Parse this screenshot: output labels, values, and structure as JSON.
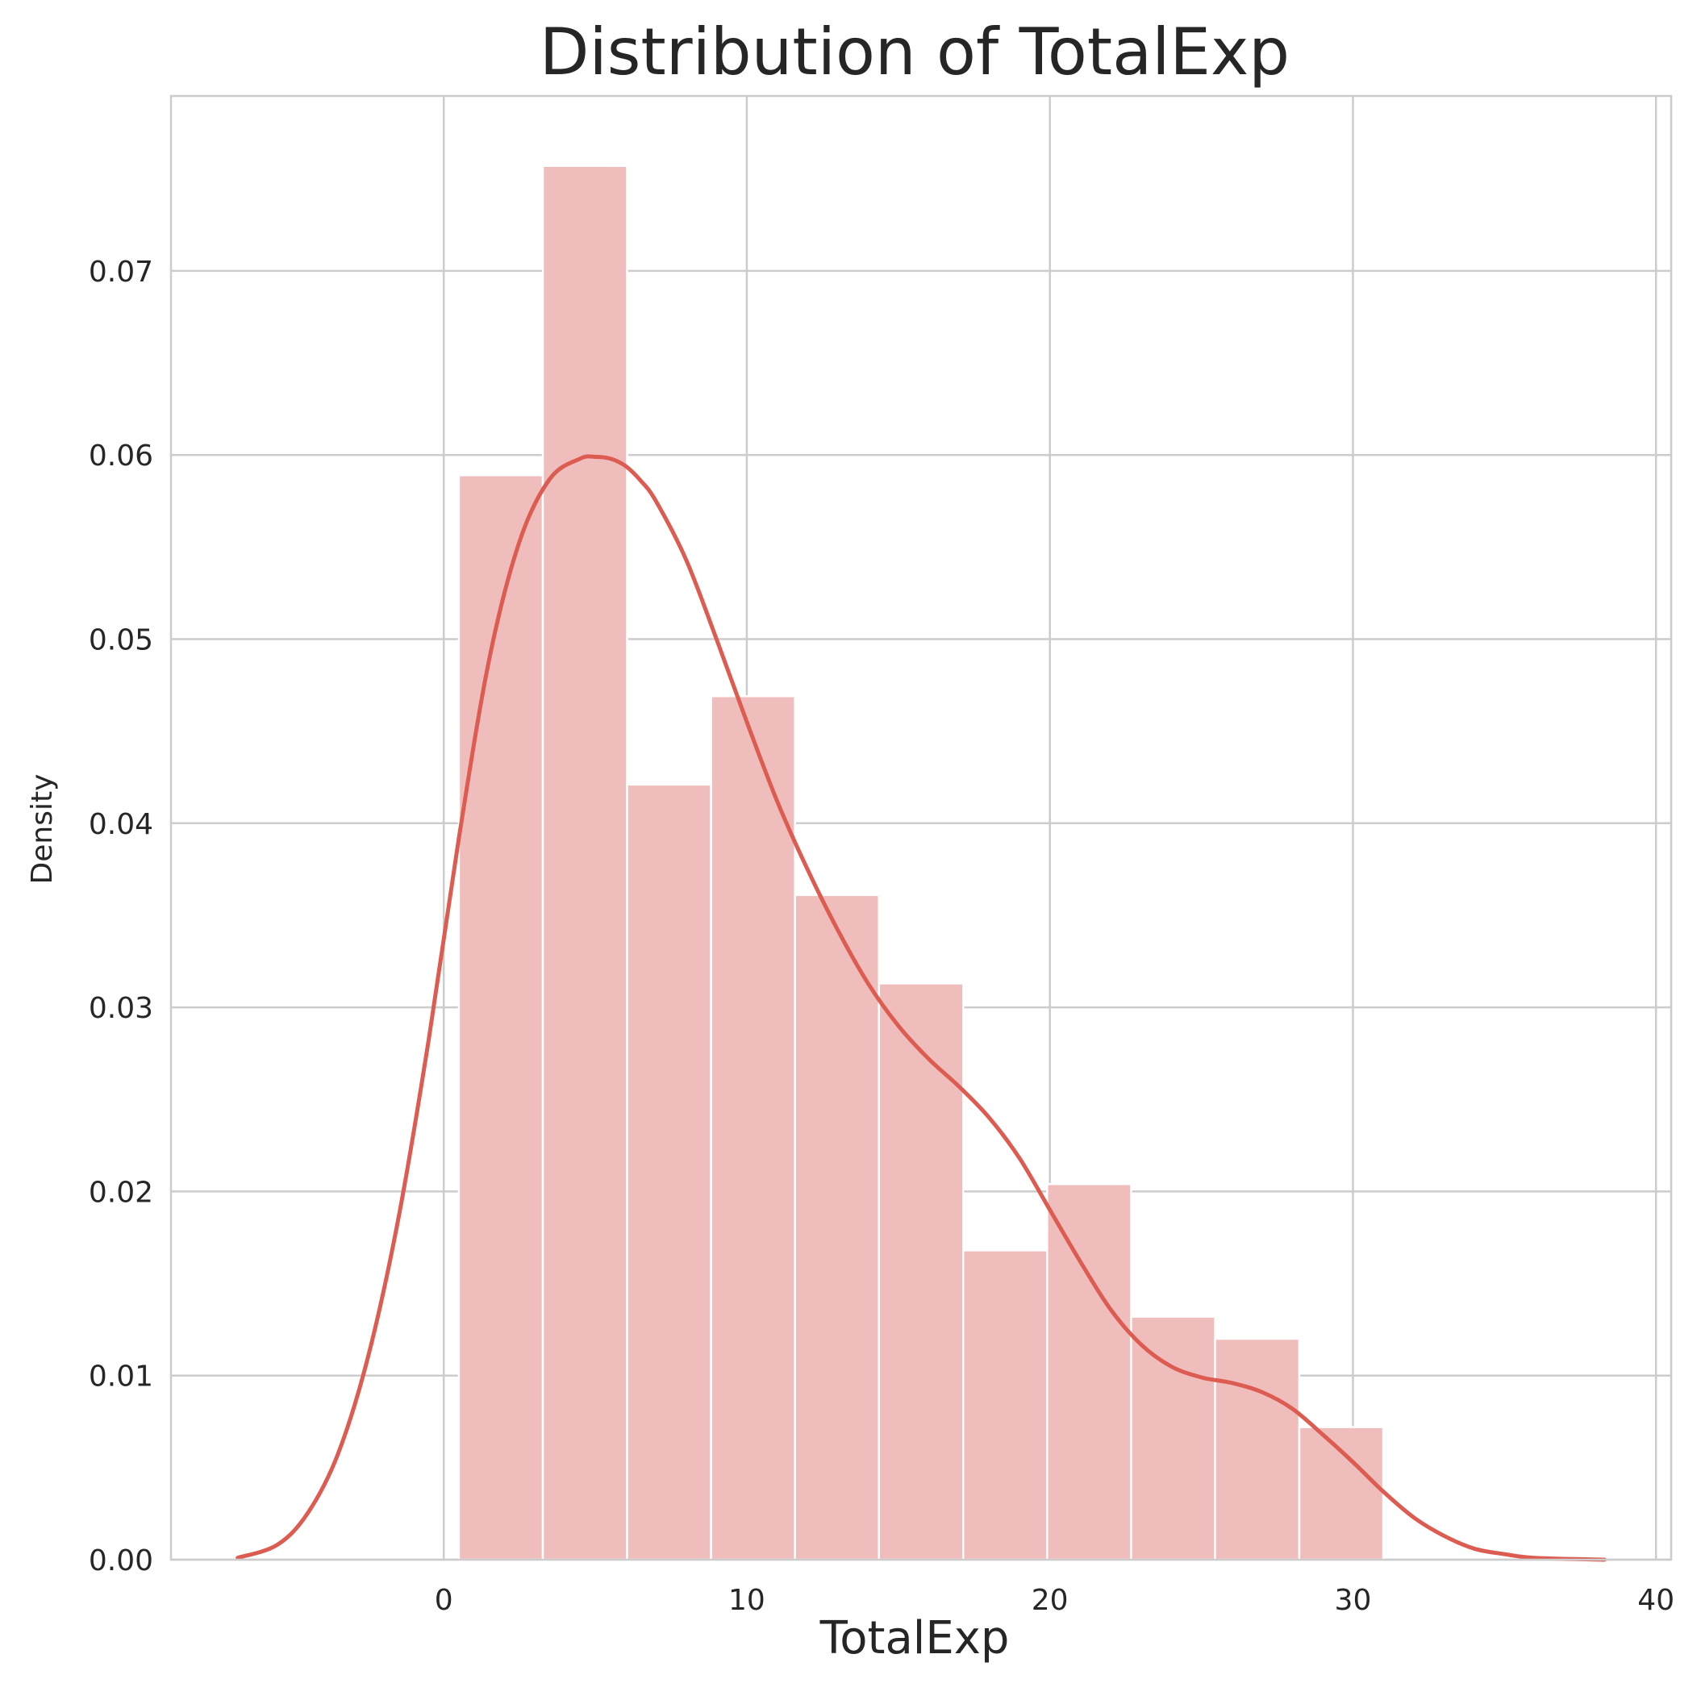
{
  "colors": {
    "bar_fill": "#efbdbb",
    "kde_line": "#dd5c52",
    "grid": "#cccccc",
    "text": "#262626"
  },
  "chart_data": {
    "type": "bar",
    "title": "Distribution of TotalExp",
    "xlabel": "TotalExp",
    "ylabel": "Density",
    "xlim": [
      -9,
      40.5
    ],
    "ylim": [
      0,
      0.0795
    ],
    "xticks": [
      0,
      10,
      20,
      30,
      40
    ],
    "yticks": [
      0.0,
      0.01,
      0.02,
      0.03,
      0.04,
      0.05,
      0.06,
      0.07
    ],
    "xtick_labels": [
      "0",
      "10",
      "20",
      "30",
      "40"
    ],
    "ytick_labels": [
      "0.00",
      "0.01",
      "0.02",
      "0.03",
      "0.04",
      "0.05",
      "0.06",
      "0.07"
    ],
    "grid": true,
    "histogram": {
      "bin_edges": [
        0.5,
        3.27,
        6.05,
        8.82,
        11.59,
        14.36,
        17.14,
        19.91,
        22.68,
        25.45,
        28.23,
        31.0
      ],
      "density": [
        0.0589,
        0.0757,
        0.0421,
        0.0469,
        0.0361,
        0.0313,
        0.0168,
        0.0204,
        0.0132,
        0.012,
        0.0072
      ]
    },
    "kde": {
      "x": [
        -6.8,
        -5.5,
        -4.5,
        -3.5,
        -2.5,
        -1.5,
        -0.5,
        0.5,
        1.5,
        2.5,
        3.5,
        4.5,
        5.0,
        5.5,
        6.0,
        6.5,
        7.0,
        8.0,
        9.0,
        10.0,
        11.0,
        12.0,
        13.0,
        14.0,
        15.0,
        16.0,
        17.0,
        18.0,
        19.0,
        20.0,
        21.0,
        22.0,
        23.0,
        24.0,
        25.0,
        26.0,
        27.0,
        28.0,
        29.0,
        30.0,
        31.0,
        32.0,
        33.0,
        34.0,
        35.0,
        36.0,
        38.3
      ],
      "y": [
        0.0001,
        0.0008,
        0.0025,
        0.0057,
        0.011,
        0.0185,
        0.0282,
        0.0392,
        0.0489,
        0.0553,
        0.0587,
        0.0598,
        0.0599,
        0.0598,
        0.0594,
        0.0586,
        0.0575,
        0.0543,
        0.05,
        0.0455,
        0.0412,
        0.0375,
        0.0342,
        0.0313,
        0.029,
        0.0272,
        0.0257,
        0.024,
        0.0218,
        0.019,
        0.0162,
        0.0136,
        0.0117,
        0.0105,
        0.0099,
        0.0096,
        0.0091,
        0.0082,
        0.0068,
        0.0053,
        0.0037,
        0.0023,
        0.0013,
        0.0006,
        0.0003,
        0.0001,
        0.0
      ]
    }
  }
}
